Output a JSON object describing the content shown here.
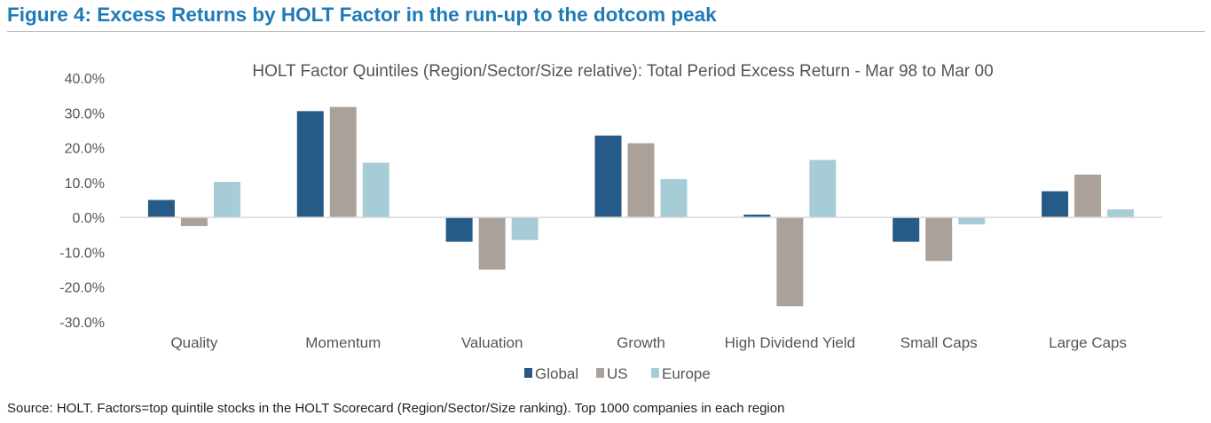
{
  "figure_title": "Figure 4: Excess Returns by HOLT Factor in the run-up to the dotcom peak",
  "source_note": "Source: HOLT. Factors=top quintile stocks in the HOLT Scorecard (Region/Sector/Size ranking). Top 1000 companies in each region",
  "colors": {
    "title": "#1f7ab8",
    "axis": "#d9d9d9",
    "text": "#555555"
  },
  "chart_data": {
    "type": "bar",
    "title": "HOLT Factor Quintiles (Region/Sector/Size relative): Total Period Excess Return - Mar 98 to Mar 00",
    "categories": [
      "Quality",
      "Momentum",
      "Valuation",
      "Growth",
      "High Dividend Yield",
      "Small Caps",
      "Large Caps"
    ],
    "series": [
      {
        "name": "Global",
        "color": "#265a87",
        "values": [
          5.0,
          30.5,
          -7.0,
          23.5,
          0.8,
          -7.0,
          7.5
        ]
      },
      {
        "name": "US",
        "color": "#aaa29a",
        "values": [
          -2.5,
          31.7,
          -15.0,
          21.3,
          -25.5,
          -12.5,
          12.3
        ]
      },
      {
        "name": "Europe",
        "color": "#a6cdd6",
        "values": [
          10.2,
          15.7,
          -6.5,
          11.0,
          16.5,
          -2.0,
          2.3
        ]
      }
    ],
    "ylim": [
      -30,
      40
    ],
    "yticks": [
      40,
      30,
      20,
      10,
      0,
      -10,
      -20,
      -30
    ],
    "ytick_labels": [
      "40.0%",
      "30.0%",
      "20.0%",
      "10.0%",
      "0.0%",
      "-10.0%",
      "-20.0%",
      "-30.0%"
    ],
    "xlabel": "",
    "ylabel": "",
    "legend_position": "bottom",
    "grid": false
  }
}
